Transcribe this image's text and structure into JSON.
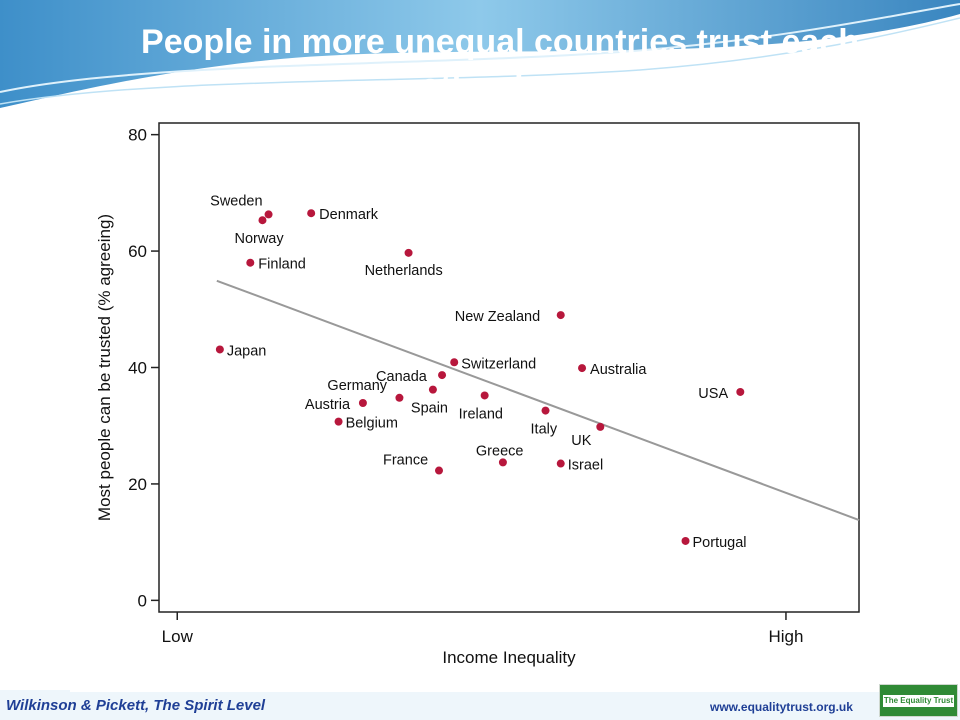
{
  "slide": {
    "title": "People in more unequal countries trust each other less",
    "citation": "Wilkinson & Pickett, The Spirit Level",
    "url": "www.equalitytrust.org.uk",
    "logo_text": "The Equality Trust"
  },
  "colors": {
    "point": "#b7173c",
    "trend": "#999999",
    "title": "#ffffff",
    "footer": "#1f3f96",
    "logo": "#2f8a35"
  },
  "chart_data": {
    "type": "scatter",
    "xlabel": "Income Inequality",
    "ylabel": "Most people can be trusted (% agreeing)",
    "x_ticks": [
      {
        "x": 0,
        "label": "Low"
      },
      {
        "x": 1,
        "label": "High"
      }
    ],
    "y_ticks": [
      0,
      20,
      40,
      60,
      80
    ],
    "xlim": [
      -0.03,
      1.12
    ],
    "ylim": [
      -2,
      82
    ],
    "grid": false,
    "points": [
      {
        "name": "Sweden",
        "x": 0.15,
        "y": 66.3
      },
      {
        "name": "Norway",
        "x": 0.14,
        "y": 65.3
      },
      {
        "name": "Denmark",
        "x": 0.22,
        "y": 66.5
      },
      {
        "name": "Finland",
        "x": 0.12,
        "y": 58.0
      },
      {
        "name": "Netherlands",
        "x": 0.38,
        "y": 59.7
      },
      {
        "name": "Japan",
        "x": 0.07,
        "y": 43.1
      },
      {
        "name": "New Zealand",
        "x": 0.63,
        "y": 49.0
      },
      {
        "name": "Switzerland",
        "x": 0.455,
        "y": 40.9
      },
      {
        "name": "Canada",
        "x": 0.435,
        "y": 38.7
      },
      {
        "name": "Australia",
        "x": 0.665,
        "y": 39.9
      },
      {
        "name": "Germany",
        "x": 0.365,
        "y": 34.8
      },
      {
        "name": "Spain",
        "x": 0.42,
        "y": 36.2
      },
      {
        "name": "Austria",
        "x": 0.305,
        "y": 33.9
      },
      {
        "name": "Ireland",
        "x": 0.505,
        "y": 35.2
      },
      {
        "name": "USA",
        "x": 0.925,
        "y": 35.8
      },
      {
        "name": "Italy",
        "x": 0.605,
        "y": 32.6
      },
      {
        "name": "Belgium",
        "x": 0.265,
        "y": 30.7
      },
      {
        "name": "UK",
        "x": 0.695,
        "y": 29.8
      },
      {
        "name": "Greece",
        "x": 0.535,
        "y": 23.7
      },
      {
        "name": "Israel",
        "x": 0.63,
        "y": 23.5
      },
      {
        "name": "France",
        "x": 0.43,
        "y": 22.3
      },
      {
        "name": "Portugal",
        "x": 0.835,
        "y": 10.2
      }
    ],
    "trend_line": {
      "x": [
        0.065,
        1.12
      ],
      "y": [
        54.9,
        13.8
      ]
    }
  }
}
